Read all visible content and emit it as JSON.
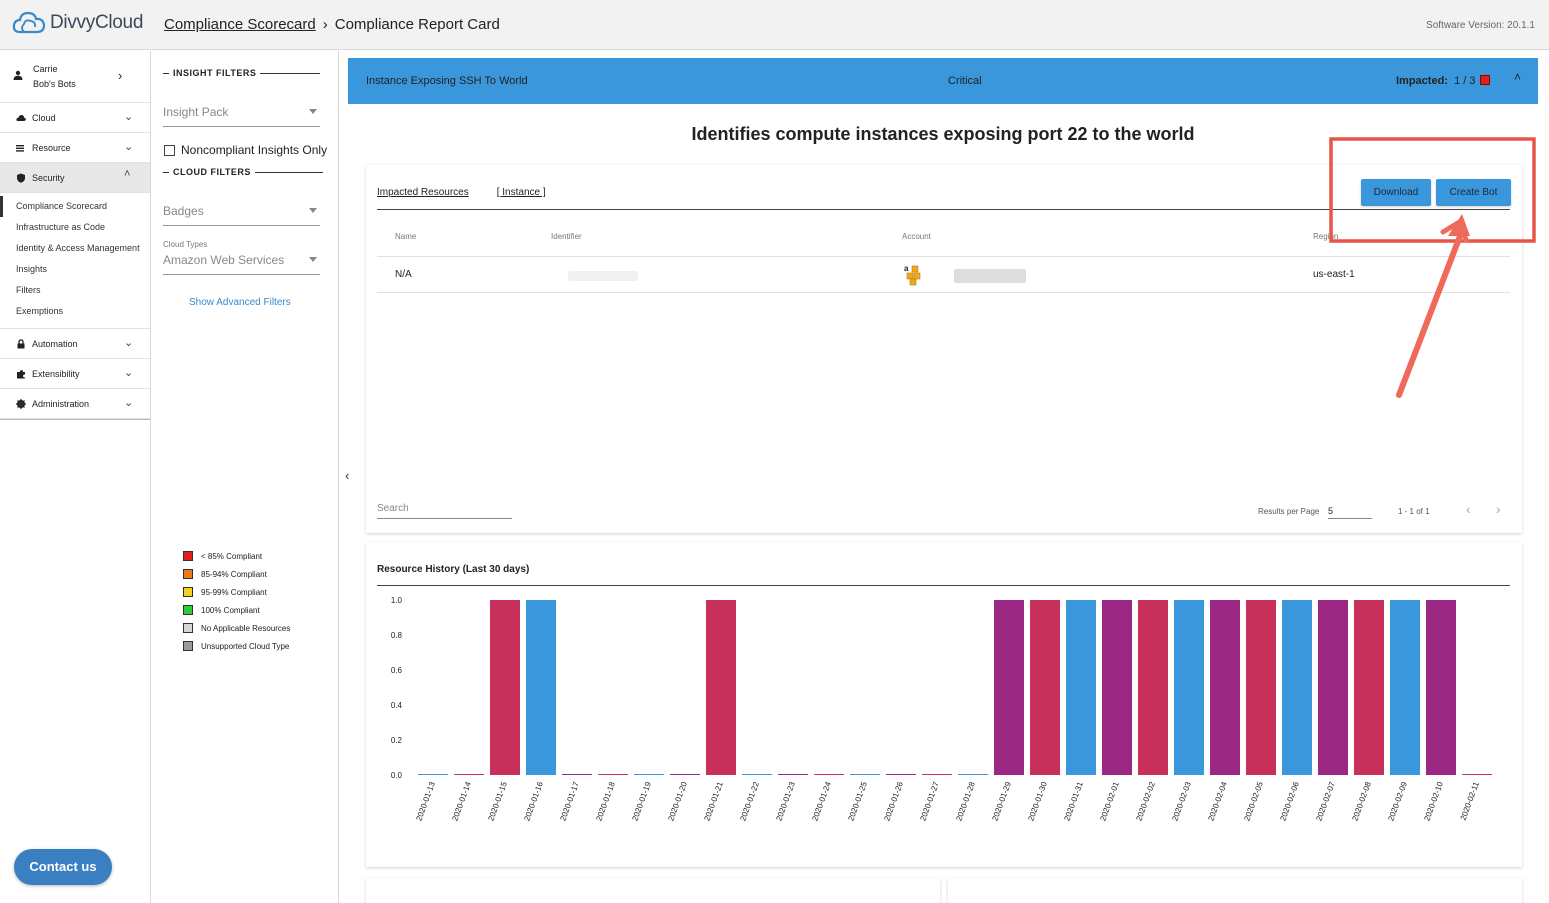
{
  "header": {
    "logo_text": "DivvyCloud",
    "breadcrumb_parent": "Compliance Scorecard",
    "breadcrumb_current": "Compliance Report Card",
    "version": "Software Version: 20.1.1"
  },
  "sidebar": {
    "user_name": "Carrie",
    "user_org": "Bob's Bots",
    "items": [
      {
        "label": "Cloud",
        "icon": "cloud-icon"
      },
      {
        "label": "Resource",
        "icon": "list-icon"
      },
      {
        "label": "Security",
        "icon": "shield-icon"
      },
      {
        "label": "Automation",
        "icon": "lock-icon"
      },
      {
        "label": "Extensibility",
        "icon": "puzzle-icon"
      },
      {
        "label": "Administration",
        "icon": "gear-icon"
      }
    ],
    "security_subitems": [
      "Compliance Scorecard",
      "Infrastructure as Code",
      "Identity & Access Management",
      "Insights",
      "Filters",
      "Exemptions"
    ],
    "contact": "Contact us"
  },
  "filters": {
    "insight_heading": "INSIGHT FILTERS",
    "insight_pack": "Insight Pack",
    "noncompliant": "Noncompliant Insights Only",
    "cloud_heading": "CLOUD FILTERS",
    "badges": "Badges",
    "cloud_types_label": "Cloud Types",
    "cloud_types_value": "Amazon Web Services",
    "advanced": "Show Advanced Filters",
    "legend": [
      {
        "label": "< 85% Compliant",
        "color": "#e41d1d"
      },
      {
        "label": "85-94% Compliant",
        "color": "#f07818"
      },
      {
        "label": "95-99% Compliant",
        "color": "#f2d21b"
      },
      {
        "label": "100% Compliant",
        "color": "#2ecc3a"
      },
      {
        "label": "No Applicable Resources",
        "color": "#d6d6d6"
      },
      {
        "label": "Unsupported Cloud Type",
        "color": "#9a9a9a"
      }
    ]
  },
  "banner": {
    "title": "Instance Exposing SSH To World",
    "severity": "Critical",
    "impacted_label": "Impacted:",
    "impacted_value": "1 / 3"
  },
  "insight": {
    "description": "Identifies compute instances exposing port 22 to the world"
  },
  "resources": {
    "tab1": "Impacted Resources",
    "tab2": "[ Instance ]",
    "download": "Download",
    "create_bot": "Create Bot",
    "columns": [
      "Name",
      "Identifier",
      "Account",
      "Region"
    ],
    "row": {
      "name": "N/A",
      "region": "us-east-1"
    },
    "search_placeholder": "Search",
    "rpp_label": "Results per Page",
    "rpp_value": "5",
    "range": "1 - 1 of 1"
  },
  "chart_data": {
    "type": "bar",
    "title": "Resource History (Last 30 days)",
    "xlabel": "",
    "ylabel": "",
    "ylim": [
      0,
      1
    ],
    "yticks": [
      "1.0",
      "0.8",
      "0.6",
      "0.4",
      "0.2",
      "0.0"
    ],
    "categories": [
      "2020-01-13",
      "2020-01-14",
      "2020-01-15",
      "2020-01-16",
      "2020-01-17",
      "2020-01-18",
      "2020-01-19",
      "2020-01-20",
      "2020-01-21",
      "2020-01-22",
      "2020-01-23",
      "2020-01-24",
      "2020-01-25",
      "2020-01-26",
      "2020-01-27",
      "2020-01-28",
      "2020-01-29",
      "2020-01-30",
      "2020-01-31",
      "2020-02-01",
      "2020-02-02",
      "2020-02-03",
      "2020-02-04",
      "2020-02-05",
      "2020-02-06",
      "2020-02-07",
      "2020-02-08",
      "2020-02-09",
      "2020-02-10",
      "2020-02-11"
    ],
    "values": [
      0,
      0,
      1,
      1,
      0,
      0,
      0,
      0,
      1,
      0,
      0,
      0,
      0,
      0,
      0,
      0,
      1,
      1,
      1,
      1,
      1,
      1,
      1,
      1,
      1,
      1,
      1,
      1,
      1,
      0
    ],
    "colors": [
      "#3a97dc",
      "#c8305c",
      "#c8305c",
      "#3a97dc",
      "#9b2882",
      "#c8305c",
      "#3a97dc",
      "#9b2882",
      "#c8305c",
      "#3a97dc",
      "#9b2882",
      "#c8305c",
      "#3a97dc",
      "#9b2882",
      "#c8305c",
      "#3a97dc",
      "#9b2882",
      "#c8305c",
      "#3a97dc",
      "#9b2882",
      "#c8305c",
      "#3a97dc",
      "#9b2882",
      "#c8305c",
      "#3a97dc",
      "#9b2882",
      "#c8305c",
      "#3a97dc",
      "#9b2882",
      "#c8305c"
    ]
  }
}
